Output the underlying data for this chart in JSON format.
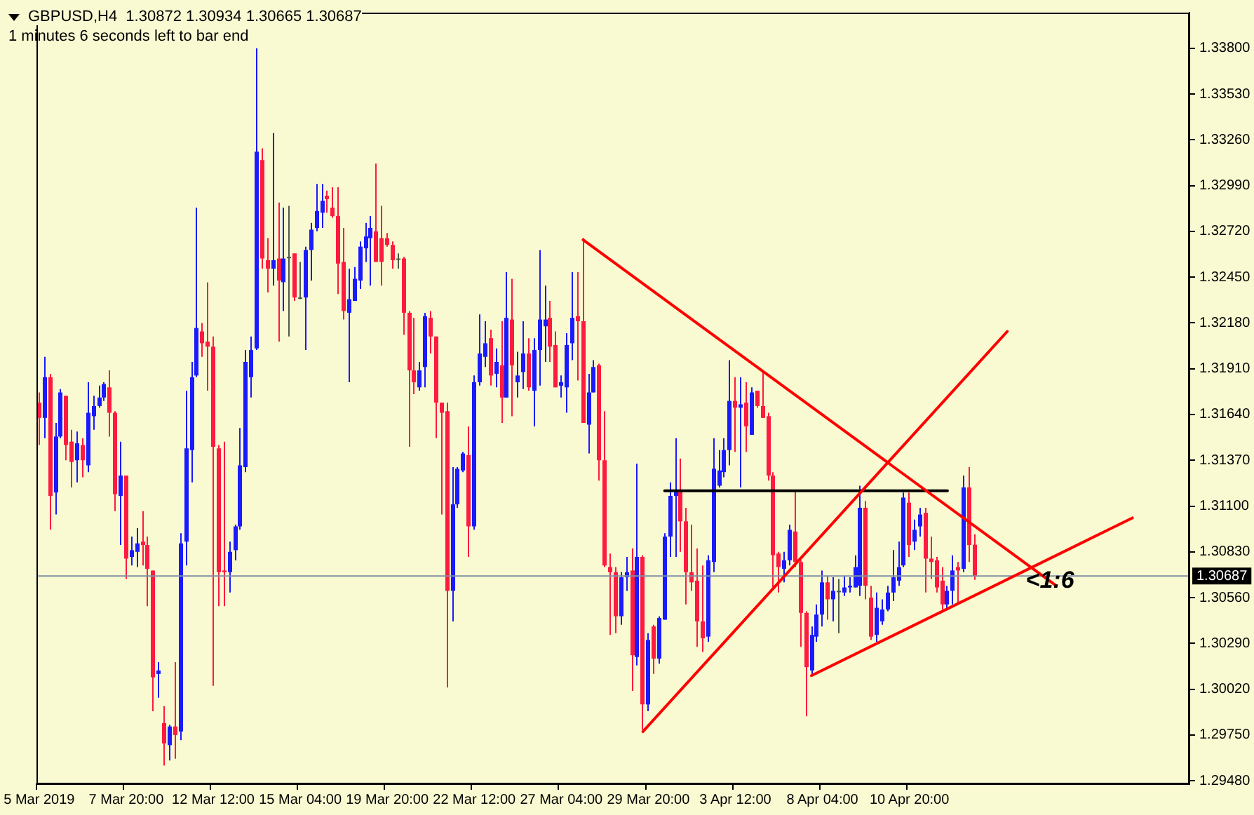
{
  "chart_data": {
    "type": "candlestick",
    "title": "GBPUSD,H4  1.30872 1.30934 1.30665 1.30687",
    "subtitle": "1 minutes 6 seconds left to bar end",
    "categories": [
      "5 Mar 2019",
      null,
      null,
      null,
      null,
      null,
      null,
      null,
      null,
      null,
      null,
      null,
      null,
      null,
      null,
      null,
      "7 Mar 20:00",
      null,
      null,
      null,
      null,
      null,
      null,
      null,
      null,
      null,
      null,
      null,
      null,
      null,
      null,
      null,
      "12 Mar 12:00",
      null,
      null,
      null,
      null,
      null,
      null,
      null,
      null,
      null,
      null,
      null,
      null,
      null,
      null,
      null,
      "15 Mar 04:00",
      null,
      null,
      null,
      null,
      null,
      null,
      null,
      null,
      null,
      null,
      null,
      null,
      null,
      null,
      null,
      "19 Mar 20:00",
      null,
      null,
      null,
      null,
      null,
      null,
      null,
      null,
      null,
      null,
      null,
      null,
      null,
      null,
      null,
      "22 Mar 12:00",
      null,
      null,
      null,
      null,
      null,
      null,
      null,
      null,
      null,
      null,
      null,
      null,
      null,
      null,
      null,
      "27 Mar 04:00",
      null,
      null,
      null,
      null,
      null,
      null,
      null,
      null,
      null,
      null,
      null,
      null,
      null,
      null,
      null,
      "29 Mar 20:00",
      null,
      null,
      null,
      null,
      null,
      null,
      null,
      null,
      null,
      null,
      null,
      null,
      null,
      null,
      null,
      "3 Apr 12:00",
      null,
      null,
      null,
      null,
      null,
      null,
      null,
      null,
      null,
      null,
      null,
      null,
      null,
      null,
      null,
      "8 Apr 04:00",
      null,
      null,
      null,
      null,
      null,
      null,
      null,
      null,
      null,
      null,
      null,
      null,
      null,
      null,
      null,
      "10 Apr 20:00",
      null,
      null,
      null,
      null,
      null,
      null,
      null,
      null,
      null,
      null,
      null,
      null,
      null,
      null,
      null,
      null,
      null,
      null,
      null,
      null,
      null,
      null,
      null,
      null,
      null,
      null,
      null,
      null,
      null,
      null,
      null,
      null,
      null,
      null,
      null,
      null,
      null,
      null,
      null,
      null,
      null,
      null,
      null,
      null,
      null,
      null,
      null,
      null,
      null,
      null,
      null
    ],
    "ohlc": [
      [
        1.3171,
        1.3177,
        1.3146,
        1.3162
      ],
      [
        1.3162,
        1.3198,
        1.315,
        1.3186
      ],
      [
        1.3186,
        1.3188,
        1.3096,
        1.3116
      ],
      [
        1.3118,
        1.3159,
        1.3105,
        1.3151
      ],
      [
        1.3151,
        1.3179,
        1.315,
        1.3177
      ],
      [
        1.3175,
        1.3175,
        1.3137,
        1.3146
      ],
      [
        1.3148,
        1.3155,
        1.3121,
        1.3136
      ],
      [
        1.3137,
        1.3154,
        1.3124,
        1.3147
      ],
      [
        1.3146,
        1.315,
        1.3127,
        1.3137
      ],
      [
        1.3134,
        1.3183,
        1.313,
        1.3165
      ],
      [
        1.3163,
        1.3175,
        1.3155,
        1.3169
      ],
      [
        1.3169,
        1.3181,
        1.3168,
        1.3174
      ],
      [
        1.3174,
        1.3183,
        1.3172,
        1.3182
      ],
      [
        1.318,
        1.319,
        1.3151,
        1.3165
      ],
      [
        1.3165,
        1.3166,
        1.3107,
        1.3117
      ],
      [
        1.3116,
        1.3148,
        1.3087,
        1.3128
      ],
      [
        1.3128,
        1.3128,
        1.3067,
        1.3079
      ],
      [
        1.308,
        1.3092,
        1.3075,
        1.3084
      ],
      [
        1.3083,
        1.3097,
        1.3074,
        1.3088
      ],
      [
        1.3089,
        1.3107,
        1.3075,
        1.3087
      ],
      [
        1.3087,
        1.3092,
        1.3051,
        1.3073
      ],
      [
        1.3072,
        1.3072,
        1.2989,
        1.3009
      ],
      [
        1.3011,
        1.3018,
        1.2997,
        1.3013
      ],
      [
        1.2982,
        1.2992,
        1.2957,
        1.297
      ],
      [
        1.2969,
        1.2981,
        1.296,
        1.298
      ],
      [
        1.298,
        1.3018,
        1.2961,
        1.2975
      ],
      [
        1.2977,
        1.3094,
        1.2972,
        1.3088
      ],
      [
        1.3089,
        1.3178,
        1.3075,
        1.3144
      ],
      [
        1.3143,
        1.3195,
        1.3124,
        1.3186
      ],
      [
        1.3187,
        1.3286,
        1.3186,
        1.3215
      ],
      [
        1.3213,
        1.3218,
        1.3198,
        1.3206
      ],
      [
        1.3207,
        1.3242,
        1.3178,
        1.3204
      ],
      [
        1.3204,
        1.321,
        1.3004,
        1.3145
      ],
      [
        1.3144,
        1.3146,
        1.3051,
        1.3071
      ],
      [
        1.3072,
        1.3148,
        1.3051,
        1.3071
      ],
      [
        1.3071,
        1.3089,
        1.3059,
        1.3083
      ],
      [
        1.3084,
        1.3099,
        1.3078,
        1.3098
      ],
      [
        1.3098,
        1.3156,
        1.3096,
        1.3134
      ],
      [
        1.3133,
        1.3202,
        1.313,
        1.3195
      ],
      [
        1.3186,
        1.321,
        1.3174,
        1.3202
      ],
      [
        1.3203,
        1.338,
        1.3202,
        1.3319
      ],
      [
        1.3314,
        1.3321,
        1.325,
        1.3256
      ],
      [
        1.3255,
        1.3268,
        1.3236,
        1.325
      ],
      [
        1.325,
        1.333,
        1.324,
        1.3255
      ],
      [
        1.3256,
        1.3289,
        1.3207,
        1.3243
      ],
      [
        1.3242,
        1.3286,
        1.3225,
        1.3256
      ],
      [
        1.3257,
        1.3287,
        1.321,
        1.3257
      ],
      [
        1.3259,
        1.3259,
        1.3231,
        1.3233
      ],
      [
        1.3233,
        1.3254,
        1.3232,
        1.3233
      ],
      [
        1.3233,
        1.3263,
        1.3202,
        1.3261
      ],
      [
        1.3261,
        1.3277,
        1.3243,
        1.3273
      ],
      [
        1.3274,
        1.33,
        1.3272,
        1.3284
      ],
      [
        1.3283,
        1.33,
        1.3274,
        1.329
      ],
      [
        1.3293,
        1.3296,
        1.3283,
        1.3291
      ],
      [
        1.3286,
        1.3298,
        1.328,
        1.3281
      ],
      [
        1.3281,
        1.3298,
        1.3235,
        1.3253
      ],
      [
        1.3254,
        1.3274,
        1.322,
        1.3225
      ],
      [
        1.3224,
        1.325,
        1.3183,
        1.3232
      ],
      [
        1.3231,
        1.3251,
        1.3231,
        1.3244
      ],
      [
        1.3243,
        1.3266,
        1.3238,
        1.3263
      ],
      [
        1.3262,
        1.3277,
        1.3254,
        1.3269
      ],
      [
        1.3268,
        1.3281,
        1.324,
        1.3274
      ],
      [
        1.3272,
        1.3312,
        1.3254,
        1.3254
      ],
      [
        1.3268,
        1.3287,
        1.324,
        1.3254
      ],
      [
        1.3268,
        1.3271,
        1.3263,
        1.3264
      ],
      [
        1.3264,
        1.3266,
        1.325,
        1.3255
      ],
      [
        1.3256,
        1.3259,
        1.325,
        1.3256
      ],
      [
        1.3256,
        1.3257,
        1.3211,
        1.3224
      ],
      [
        1.3224,
        1.3225,
        1.3145,
        1.319
      ],
      [
        1.319,
        1.3221,
        1.3176,
        1.3183
      ],
      [
        1.318,
        1.3195,
        1.3178,
        1.319
      ],
      [
        1.3192,
        1.3224,
        1.318,
        1.3222
      ],
      [
        1.3221,
        1.3225,
        1.32,
        1.321
      ],
      [
        1.321,
        1.321,
        1.315,
        1.3171
      ],
      [
        1.3171,
        1.3171,
        1.3105,
        1.3165
      ],
      [
        1.3166,
        1.3171,
        1.3003,
        1.306
      ],
      [
        1.306,
        1.3133,
        1.3042,
        1.3111
      ],
      [
        1.3111,
        1.3133,
        1.3109,
        1.3132
      ],
      [
        1.3131,
        1.3142,
        1.313,
        1.3141
      ],
      [
        1.314,
        1.3157,
        1.308,
        1.3098
      ],
      [
        1.3098,
        1.3187,
        1.3096,
        1.3183
      ],
      [
        1.3183,
        1.3223,
        1.3181,
        1.32
      ],
      [
        1.3198,
        1.3219,
        1.3192,
        1.3206
      ],
      [
        1.3209,
        1.3214,
        1.3181,
        1.3187
      ],
      [
        1.3188,
        1.3203,
        1.318,
        1.3195
      ],
      [
        1.3193,
        1.3219,
        1.3159,
        1.3174
      ],
      [
        1.3174,
        1.3248,
        1.3174,
        1.3221
      ],
      [
        1.322,
        1.3244,
        1.3163,
        1.3193
      ],
      [
        1.3183,
        1.3201,
        1.3174,
        1.3187
      ],
      [
        1.3189,
        1.3219,
        1.3179,
        1.32
      ],
      [
        1.32,
        1.3209,
        1.3178,
        1.318
      ],
      [
        1.3178,
        1.3209,
        1.3157,
        1.3202
      ],
      [
        1.3202,
        1.3261,
        1.3181,
        1.322
      ],
      [
        1.3216,
        1.324,
        1.3195,
        1.322
      ],
      [
        1.3221,
        1.3231,
        1.3195,
        1.3204
      ],
      [
        1.3205,
        1.3213,
        1.318,
        1.318
      ],
      [
        1.3181,
        1.3187,
        1.3174,
        1.3183
      ],
      [
        1.318,
        1.3212,
        1.3165,
        1.3205
      ],
      [
        1.3206,
        1.3248,
        1.3196,
        1.3221
      ],
      [
        1.3222,
        1.3248,
        1.3184,
        1.3219
      ],
      [
        1.3219,
        1.3268,
        1.3159,
        1.3159
      ],
      [
        1.3158,
        1.3188,
        1.3141,
        1.3177
      ],
      [
        1.3177,
        1.3196,
        1.3177,
        1.3192
      ],
      [
        1.3193,
        1.3194,
        1.3125,
        1.3137
      ],
      [
        1.3137,
        1.3166,
        1.3074,
        1.3075
      ],
      [
        1.3074,
        1.3082,
        1.3034,
        1.3071
      ],
      [
        1.3071,
        1.3074,
        1.3035,
        1.3045
      ],
      [
        1.3045,
        1.3071,
        1.304,
        1.3068
      ],
      [
        1.3068,
        1.308,
        1.306,
        1.3071
      ],
      [
        1.3072,
        1.3085,
        1.3001,
        1.3022
      ],
      [
        1.3021,
        1.3135,
        1.3016,
        1.308
      ],
      [
        1.308,
        1.3081,
        1.2978,
        1.2993
      ],
      [
        1.2993,
        1.3035,
        1.2989,
        1.3031
      ],
      [
        1.3039,
        1.304,
        1.3011,
        1.302
      ],
      [
        1.302,
        1.3045,
        1.3017,
        1.3044
      ],
      [
        1.3043,
        1.3094,
        1.3043,
        1.3092
      ],
      [
        1.3092,
        1.3124,
        1.308,
        1.3116
      ],
      [
        1.3116,
        1.315,
        1.308,
        1.3119
      ],
      [
        1.3119,
        1.3138,
        1.3083,
        1.3101
      ],
      [
        1.3101,
        1.3109,
        1.3052,
        1.3071
      ],
      [
        1.3071,
        1.3099,
        1.306,
        1.3065
      ],
      [
        1.3066,
        1.3085,
        1.3027,
        1.3042
      ],
      [
        1.3042,
        1.3075,
        1.3024,
        1.3032
      ],
      [
        1.3033,
        1.3081,
        1.303,
        1.3078
      ],
      [
        1.3077,
        1.315,
        1.3071,
        1.3132
      ],
      [
        1.3122,
        1.3143,
        1.3121,
        1.3131
      ],
      [
        1.313,
        1.315,
        1.3127,
        1.3143
      ],
      [
        1.3143,
        1.3196,
        1.3134,
        1.3172
      ],
      [
        1.3172,
        1.3186,
        1.3142,
        1.3168
      ],
      [
        1.3168,
        1.3186,
        1.3121,
        1.317
      ],
      [
        1.3171,
        1.3183,
        1.3142,
        1.3157
      ],
      [
        1.3152,
        1.318,
        1.3152,
        1.3177
      ],
      [
        1.3178,
        1.3178,
        1.3168,
        1.3169
      ],
      [
        1.3169,
        1.319,
        1.3162,
        1.3162
      ],
      [
        1.3163,
        1.3165,
        1.3125,
        1.3128
      ],
      [
        1.3128,
        1.313,
        1.3062,
        1.3081
      ],
      [
        1.3082,
        1.3083,
        1.3059,
        1.3074
      ],
      [
        1.3073,
        1.3083,
        1.3065,
        1.3078
      ],
      [
        1.3078,
        1.3099,
        1.3075,
        1.3096
      ],
      [
        1.3095,
        1.3119,
        1.3074,
        1.3077
      ],
      [
        1.3077,
        1.3078,
        1.3027,
        1.3047
      ],
      [
        1.3047,
        1.3048,
        1.2986,
        1.3015
      ],
      [
        1.3013,
        1.3039,
        1.301,
        1.3034
      ],
      [
        1.3033,
        1.3052,
        1.303,
        1.3046
      ],
      [
        1.3046,
        1.3072,
        1.3039,
        1.3065
      ],
      [
        1.3065,
        1.3069,
        1.3043,
        1.3055
      ],
      [
        1.3055,
        1.3068,
        1.3042,
        1.306
      ],
      [
        1.306,
        1.3067,
        1.3035,
        1.306
      ],
      [
        1.3059,
        1.3069,
        1.3057,
        1.3062
      ],
      [
        1.3062,
        1.3068,
        1.3059,
        1.3063
      ],
      [
        1.3062,
        1.3081,
        1.3062,
        1.3074
      ],
      [
        1.3063,
        1.3122,
        1.3057,
        1.3109
      ],
      [
        1.3109,
        1.3113,
        1.3055,
        1.3063
      ],
      [
        1.3056,
        1.3063,
        1.3031,
        1.3033
      ],
      [
        1.3034,
        1.3059,
        1.303,
        1.305
      ],
      [
        1.3042,
        1.3055,
        1.304,
        1.3049
      ],
      [
        1.3049,
        1.3063,
        1.3048,
        1.3059
      ],
      [
        1.3059,
        1.3084,
        1.3054,
        1.3068
      ],
      [
        1.3066,
        1.3089,
        1.3063,
        1.3074
      ],
      [
        1.3075,
        1.3118,
        1.3074,
        1.3115
      ],
      [
        1.3112,
        1.3118,
        1.308,
        1.3087
      ],
      [
        1.3089,
        1.3102,
        1.3084,
        1.3096
      ],
      [
        1.3098,
        1.3109,
        1.3092,
        1.3105
      ],
      [
        1.3106,
        1.3109,
        1.3059,
        1.3079
      ],
      [
        1.3079,
        1.3092,
        1.3067,
        1.3077
      ],
      [
        1.3078,
        1.308,
        1.3059,
        1.3062
      ],
      [
        1.3066,
        1.3074,
        1.3049,
        1.3052
      ],
      [
        1.3052,
        1.3063,
        1.3049,
        1.306
      ],
      [
        1.306,
        1.3081,
        1.3052,
        1.3072
      ],
      [
        1.3074,
        1.3077,
        1.3052,
        1.3072
      ],
      [
        1.3073,
        1.3128,
        1.3071,
        1.3121
      ],
      [
        1.3121,
        1.3133,
        1.3077,
        1.3087
      ],
      [
        1.30872,
        1.30934,
        1.30665,
        1.30687
      ],
      null,
      null,
      null,
      null,
      null,
      null,
      null,
      null,
      null,
      null,
      null,
      null,
      null,
      null,
      null,
      null,
      null,
      null,
      null,
      null,
      null,
      null,
      null,
      null,
      null,
      null,
      null,
      null,
      null,
      null,
      null,
      null,
      null,
      null,
      null,
      null,
      null,
      null,
      null
    ],
    "colors": [
      "#ff1a40",
      "#1a1aff",
      "#ff1a40",
      "#1a1aff",
      "#1a1aff",
      "#ff1a40",
      "#ff1a40",
      "#1a1aff",
      "#ff1a40",
      "#1a1aff",
      "#1a1aff",
      "#1a1aff",
      "#1a1aff",
      "#ff1a40",
      "#ff1a40",
      "#1a1aff",
      "#ff1a40",
      "#1a1aff",
      "#1a1aff",
      "#ff1a40",
      "#ff1a40",
      "#ff1a40",
      "#1a1aff",
      "#ff1a40",
      "#1a1aff",
      "#ff1a40",
      "#1a1aff",
      "#1a1aff",
      "#1a1aff",
      "#1a1aff",
      "#ff1a40",
      "#ff1a40",
      "#ff1a40",
      "#ff1a40",
      "#ff1a40",
      "#1a1aff",
      "#1a1aff",
      "#1a1aff",
      "#1a1aff",
      "#1a1aff",
      "#1a1aff",
      "#ff1a40",
      "#ff1a40",
      "#1a1aff",
      "#ff1a40",
      "#1a1aff",
      "#4d5a4d",
      "#ff1a40",
      "#4d5a4d",
      "#1a1aff",
      "#1a1aff",
      "#1a1aff",
      "#1a1aff",
      "#ff1a40",
      "#ff1a40",
      "#ff1a40",
      "#ff1a40",
      "#1a1aff",
      "#1a1aff",
      "#1a1aff",
      "#1a1aff",
      "#1a1aff",
      "#ff1a40",
      "#ff1a40",
      "#ff1a40",
      "#ff1a40",
      "#4d5a4d",
      "#ff1a40",
      "#ff1a40",
      "#ff1a40",
      "#1a1aff",
      "#1a1aff",
      "#ff1a40",
      "#ff1a40",
      "#ff1a40",
      "#ff1a40",
      "#1a1aff",
      "#1a1aff",
      "#1a1aff",
      "#ff1a40",
      "#1a1aff",
      "#1a1aff",
      "#1a1aff",
      "#ff1a40",
      "#1a1aff",
      "#ff1a40",
      "#1a1aff",
      "#ff1a40",
      "#1a1aff",
      "#1a1aff",
      "#ff1a40",
      "#1a1aff",
      "#1a1aff",
      "#1a1aff",
      "#ff1a40",
      "#ff1a40",
      "#1a1aff",
      "#1a1aff",
      "#1a1aff",
      "#ff1a40",
      "#ff1a40",
      "#1a1aff",
      "#1a1aff",
      "#ff1a40",
      "#ff1a40",
      "#ff1a40",
      "#ff1a40",
      "#1a1aff",
      "#1a1aff",
      "#ff1a40",
      "#1a1aff",
      "#ff1a40",
      "#1a1aff",
      "#ff1a40",
      "#1a1aff",
      "#1a1aff",
      "#1a1aff",
      "#1a1aff",
      "#ff1a40",
      "#ff1a40",
      "#ff1a40",
      "#ff1a40",
      "#ff1a40",
      "#1a1aff",
      "#1a1aff",
      "#1a1aff",
      "#1a1aff",
      "#1a1aff",
      "#ff1a40",
      "#1a1aff",
      "#ff1a40",
      "#1a1aff",
      "#ff1a40",
      "#ff1a40",
      "#ff1a40",
      "#ff1a40",
      "#ff1a40",
      "#1a1aff",
      "#1a1aff",
      "#ff1a40",
      "#ff1a40",
      "#ff1a40",
      "#1a1aff",
      "#1a1aff",
      "#1a1aff",
      "#ff1a40",
      "#1a1aff",
      "#4d5a4d",
      "#1a1aff",
      "#1a1aff",
      "#1a1aff",
      "#1a1aff",
      "#ff1a40",
      "#ff1a40",
      "#1a1aff",
      "#1a1aff",
      "#1a1aff",
      "#1a1aff",
      "#1a1aff",
      "#1a1aff",
      "#ff1a40",
      "#1a1aff",
      "#1a1aff",
      "#ff1a40",
      "#ff1a40",
      "#ff1a40",
      "#ff1a40",
      "#1a1aff",
      "#1a1aff",
      "#ff1a40",
      "#1a1aff",
      "#ff1a40",
      "#ff1a40",
      null,
      null,
      null,
      null,
      null,
      null,
      null,
      null,
      null,
      null,
      null,
      null,
      null,
      null,
      null,
      null,
      null,
      null,
      null,
      null,
      null,
      null,
      null,
      null,
      null,
      null,
      null,
      null,
      null,
      null,
      null,
      null,
      null,
      null,
      null,
      null,
      null,
      null,
      null
    ],
    "series": [
      {
        "type": "line",
        "color": "#ff0000",
        "values": [
          null,
          null,
          null,
          null,
          null,
          null,
          null,
          null,
          null,
          null,
          null,
          null,
          null,
          null,
          null,
          null,
          null,
          null,
          null,
          null,
          null,
          null,
          null,
          null,
          null,
          null,
          null,
          null,
          null,
          null,
          null,
          null,
          null,
          null,
          null,
          null,
          null,
          null,
          null,
          null,
          null,
          null,
          null,
          null,
          null,
          null,
          null,
          null,
          null,
          null,
          null,
          null,
          null,
          null,
          null,
          null,
          null,
          null,
          null,
          null,
          null,
          null,
          null,
          null,
          null,
          null,
          null,
          null,
          null,
          null,
          null,
          null,
          null,
          null,
          null,
          null,
          null,
          null,
          null,
          null,
          null,
          null,
          null,
          null,
          null,
          null,
          null,
          null,
          null,
          null,
          null,
          null,
          null,
          null,
          null,
          null,
          null,
          null,
          null,
          null,
          1.3267,
          null,
          null,
          null,
          null,
          null,
          null,
          null,
          null,
          null,
          null,
          null,
          null,
          null,
          null,
          null,
          null,
          null,
          null,
          null,
          null,
          null,
          null,
          null,
          null,
          null,
          null,
          null,
          null,
          null,
          null,
          null,
          null,
          null,
          null,
          null,
          null,
          null,
          null,
          null,
          null,
          null,
          null,
          null,
          null,
          null,
          null,
          null,
          null,
          null,
          null,
          null,
          null,
          null,
          null,
          null,
          null,
          null,
          null,
          null,
          null,
          null,
          null,
          null,
          null,
          null,
          null,
          null,
          null,
          null,
          null,
          null,
          null,
          null,
          null,
          null,
          null,
          null,
          null,
          null,
          null,
          null,
          null,
          null,
          null,
          null,
          null,
          1.3063,
          null,
          null,
          null,
          null,
          null,
          null,
          null,
          null,
          null,
          null,
          null,
          null,
          null,
          null,
          null,
          null,
          null,
          null,
          null,
          null,
          null,
          null,
          null,
          null
        ]
      },
      {
        "type": "line",
        "color": "#ff0000",
        "values": [
          null,
          null,
          null,
          null,
          null,
          null,
          null,
          null,
          null,
          null,
          null,
          null,
          null,
          null,
          null,
          null,
          null,
          null,
          null,
          null,
          null,
          null,
          null,
          null,
          null,
          null,
          null,
          null,
          null,
          null,
          null,
          null,
          null,
          null,
          null,
          null,
          null,
          null,
          null,
          null,
          null,
          null,
          null,
          null,
          null,
          null,
          null,
          null,
          null,
          null,
          null,
          null,
          null,
          null,
          null,
          null,
          null,
          null,
          null,
          null,
          null,
          null,
          null,
          null,
          null,
          null,
          null,
          null,
          null,
          null,
          null,
          null,
          null,
          null,
          null,
          null,
          null,
          null,
          null,
          null,
          null,
          null,
          null,
          null,
          null,
          null,
          null,
          null,
          null,
          null,
          null,
          null,
          null,
          null,
          null,
          null,
          null,
          null,
          null,
          null,
          null,
          null,
          null,
          null,
          null,
          null,
          null,
          null,
          null,
          null,
          null,
          1.2977,
          null,
          null,
          null,
          null,
          null,
          null,
          null,
          null,
          null,
          null,
          null,
          null,
          null,
          null,
          null,
          null,
          null,
          null,
          null,
          null,
          null,
          null,
          null,
          null,
          null,
          null,
          null,
          null,
          null,
          null,
          null,
          null,
          null,
          null,
          null,
          null,
          null,
          null,
          null,
          null,
          null,
          null,
          null,
          null,
          null,
          null,
          null,
          null,
          null,
          null,
          null,
          null,
          null,
          null,
          null,
          null,
          null,
          null,
          null,
          null,
          null,
          null,
          null,
          null,
          null,
          null,
          1.3213,
          null,
          null,
          null,
          null,
          null,
          null,
          null,
          null,
          null,
          null,
          null,
          null,
          null,
          null,
          null,
          null,
          null,
          null,
          null,
          null,
          null,
          null,
          null,
          null,
          null,
          null,
          null,
          null,
          null,
          null,
          null,
          null,
          null
        ]
      },
      {
        "type": "line",
        "color": "#ff0000",
        "values": [
          null,
          null,
          null,
          null,
          null,
          null,
          null,
          null,
          null,
          null,
          null,
          null,
          null,
          null,
          null,
          null,
          null,
          null,
          null,
          null,
          null,
          null,
          null,
          null,
          null,
          null,
          null,
          null,
          null,
          null,
          null,
          null,
          null,
          null,
          null,
          null,
          null,
          null,
          null,
          null,
          null,
          null,
          null,
          null,
          null,
          null,
          null,
          null,
          null,
          null,
          null,
          null,
          null,
          null,
          null,
          null,
          null,
          null,
          null,
          null,
          null,
          null,
          null,
          null,
          null,
          null,
          null,
          null,
          null,
          null,
          null,
          null,
          null,
          null,
          null,
          null,
          null,
          null,
          null,
          null,
          null,
          null,
          null,
          null,
          null,
          null,
          null,
          null,
          null,
          null,
          null,
          null,
          null,
          null,
          null,
          null,
          null,
          null,
          null,
          null,
          null,
          null,
          null,
          null,
          null,
          null,
          null,
          null,
          null,
          null,
          null,
          null,
          null,
          null,
          null,
          null,
          null,
          null,
          null,
          null,
          null,
          null,
          null,
          null,
          null,
          null,
          null,
          null,
          null,
          null,
          null,
          null,
          null,
          null,
          null,
          null,
          null,
          null,
          null,
          null,
          null,
          null,
          1.301,
          null,
          null,
          null,
          null,
          null,
          null,
          null,
          null,
          null,
          null,
          null,
          null,
          null,
          null,
          null,
          null,
          null,
          null,
          null,
          null,
          null,
          null,
          null,
          null,
          null,
          null,
          null,
          null,
          null,
          null,
          null,
          null,
          null,
          null,
          null,
          null,
          null,
          null,
          null,
          null,
          null,
          null,
          null,
          null,
          null,
          null,
          null,
          null,
          null,
          null,
          null,
          null,
          null,
          null,
          null,
          null,
          null,
          null,
          1.3103,
          null,
          null,
          null,
          null,
          null,
          null,
          null,
          null,
          null,
          null
        ]
      },
      {
        "type": "line",
        "color": "#000000",
        "values": [
          null,
          null,
          null,
          null,
          null,
          null,
          null,
          null,
          null,
          null,
          null,
          null,
          null,
          null,
          null,
          null,
          null,
          null,
          null,
          null,
          null,
          null,
          null,
          null,
          null,
          null,
          null,
          null,
          null,
          null,
          null,
          null,
          null,
          null,
          null,
          null,
          null,
          null,
          null,
          null,
          null,
          null,
          null,
          null,
          null,
          null,
          null,
          null,
          null,
          null,
          null,
          null,
          null,
          null,
          null,
          null,
          null,
          null,
          null,
          null,
          null,
          null,
          null,
          null,
          null,
          null,
          null,
          null,
          null,
          null,
          null,
          null,
          null,
          null,
          null,
          null,
          null,
          null,
          null,
          null,
          null,
          null,
          null,
          null,
          null,
          null,
          null,
          null,
          null,
          null,
          null,
          null,
          null,
          null,
          null,
          null,
          null,
          null,
          null,
          null,
          null,
          null,
          null,
          null,
          null,
          null,
          null,
          null,
          null,
          null,
          null,
          null,
          null,
          null,
          null,
          1.3119,
          null,
          null,
          null,
          null,
          null,
          null,
          null,
          null,
          null,
          null,
          null,
          null,
          null,
          null,
          null,
          null,
          null,
          null,
          null,
          null,
          null,
          null,
          null,
          null,
          null,
          null,
          null,
          null,
          null,
          null,
          null,
          null,
          null,
          null,
          null,
          null,
          null,
          null,
          null,
          null,
          null,
          null,
          null,
          null,
          null,
          null,
          null,
          null,
          null,
          null,
          null,
          1.3119,
          null,
          null,
          null,
          null,
          null,
          null,
          null,
          null,
          null,
          null,
          null,
          null,
          null,
          null,
          null,
          null,
          null,
          null,
          null,
          null,
          null,
          null,
          null,
          null,
          null,
          null,
          null,
          null,
          null,
          null,
          null,
          null,
          null,
          null,
          null,
          null,
          null,
          null,
          null,
          null,
          null,
          null,
          null,
          null
        ]
      }
    ],
    "ylim": [
      1.2946,
      1.3401
    ],
    "yticks": [
      {
        "value": 1.338,
        "label": "1.33800"
      },
      {
        "value": 1.3353,
        "label": "1.33530"
      },
      {
        "value": 1.3326,
        "label": "1.33260"
      },
      {
        "value": 1.3299,
        "label": "1.32990"
      },
      {
        "value": 1.3272,
        "label": "1.32720"
      },
      {
        "value": 1.3245,
        "label": "1.32450"
      },
      {
        "value": 1.3218,
        "label": "1.32180"
      },
      {
        "value": 1.3191,
        "label": "1.31910"
      },
      {
        "value": 1.3164,
        "label": "1.31640"
      },
      {
        "value": 1.3137,
        "label": "1.31370"
      },
      {
        "value": 1.311,
        "label": "1.31100"
      },
      {
        "value": 1.3083,
        "label": "1.30830"
      },
      {
        "value": 1.3056,
        "label": "1.30560"
      },
      {
        "value": 1.3029,
        "label": "1.30290"
      },
      {
        "value": 1.3002,
        "label": "1.30020"
      },
      {
        "value": 1.2975,
        "label": "1.29750"
      },
      {
        "value": 1.2948,
        "label": "1.29480"
      }
    ],
    "ref_lines": [
      {
        "axis": "y",
        "value": 1.30687,
        "label": "1.30687",
        "color": "#8090a8"
      }
    ],
    "annotations": [
      "<1:6"
    ]
  }
}
